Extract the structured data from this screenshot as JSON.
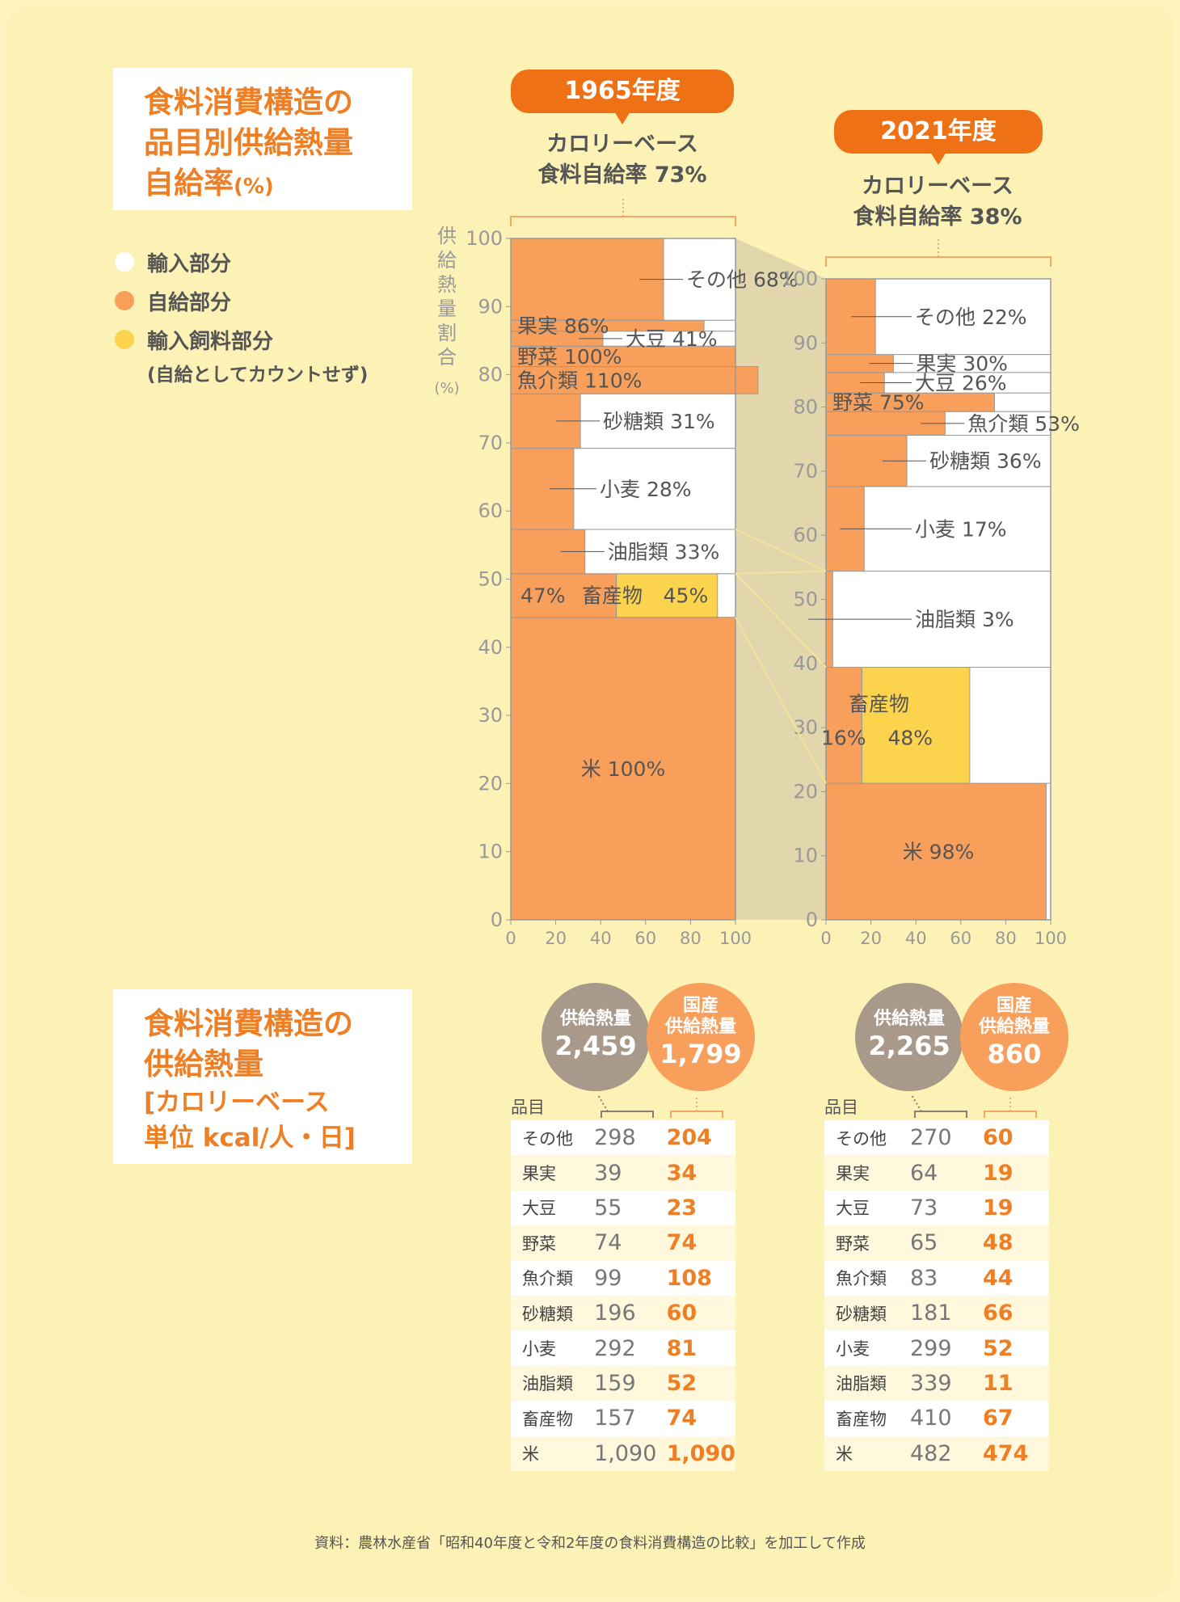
{
  "title1": "食料消費構造の\n品目別供給熱量\n自給率",
  "title1_unit": "(%)",
  "legend": [
    {
      "label": "輸入部分",
      "color": "#ffffff"
    },
    {
      "label": "自給部分",
      "color": "#f89f5b"
    },
    {
      "label": "輸入飼料部分",
      "color": "#fcd34d"
    }
  ],
  "legend_note": "(自給としてカウントせず)",
  "year1": "1965年度",
  "year2": "2021年度",
  "rate1": "カロリーベース\n食料自給率 73%",
  "rate2": "カロリーベース\n食料自給率 38%",
  "yaxis_label": "供給熱量割合",
  "yaxis_unit": "(%)",
  "title2": "食料消費構造の\n供給熱量",
  "title2_sub": "[カロリーベース\n単位 kcal/人・日]",
  "circle_supply_label": "供給熱量",
  "circle_domestic_label": "国産\n供給熱量",
  "supply_1965": "2,459",
  "domestic_1965": "1,799",
  "supply_2021": "2,265",
  "domestic_2021": "860",
  "table_header": "品目",
  "source": "資料：農林水産省「昭和40年度と令和2年度の食料消費構造の比較」を加工して作成",
  "colors": {
    "import": "#ffffff",
    "self": "#f89f5b",
    "feed": "#fcd34d",
    "accent": "#ee7116",
    "connector": "#e2d6ac"
  },
  "chart_data": [
    {
      "type": "bar",
      "title": "1965年度",
      "ylabel": "供給熱量割合 (%)",
      "xlim": [
        0,
        100
      ],
      "ylim": [
        0,
        100
      ],
      "xticks": [
        0,
        20,
        40,
        60,
        80,
        100
      ],
      "yticks": [
        0,
        10,
        20,
        30,
        40,
        50,
        60,
        70,
        80,
        90,
        100
      ],
      "items": [
        {
          "name": "米",
          "label": "米 100%",
          "y0": 0,
          "y1": 44.4,
          "self": 100,
          "feed": 0
        },
        {
          "name": "畜産物",
          "label": "畜産物",
          "y0": 44.4,
          "y1": 50.8,
          "self": 47,
          "feed": 45,
          "self_label": "47%",
          "feed_label": "45%"
        },
        {
          "name": "油脂類",
          "label": "油脂類 33%",
          "y0": 50.8,
          "y1": 57.3,
          "self": 33,
          "feed": 0
        },
        {
          "name": "小麦",
          "label": "小麦 28%",
          "y0": 57.3,
          "y1": 69.2,
          "self": 28,
          "feed": 0
        },
        {
          "name": "砂糖類",
          "label": "砂糖類 31%",
          "y0": 69.2,
          "y1": 77.2,
          "self": 31,
          "feed": 0
        },
        {
          "name": "魚介類",
          "label": "魚介類 110%",
          "y0": 77.2,
          "y1": 81.2,
          "self": 110,
          "feed": 0
        },
        {
          "name": "野菜",
          "label": "野菜 100%",
          "y0": 81.2,
          "y1": 84.2,
          "self": 100,
          "feed": 0
        },
        {
          "name": "大豆",
          "label": "大豆 41%",
          "y0": 84.2,
          "y1": 86.4,
          "self": 41,
          "feed": 0
        },
        {
          "name": "果実",
          "label": "果実 86%",
          "y0": 86.4,
          "y1": 88.0,
          "self": 86,
          "feed": 0
        },
        {
          "name": "その他",
          "label": "その他 68%",
          "y0": 88.0,
          "y1": 100,
          "self": 68,
          "feed": 0
        }
      ]
    },
    {
      "type": "bar",
      "title": "2021年度",
      "xlim": [
        0,
        100
      ],
      "ylim": [
        0,
        100
      ],
      "xticks": [
        0,
        20,
        40,
        60,
        80,
        100
      ],
      "yticks": [
        0,
        10,
        20,
        30,
        40,
        50,
        60,
        70,
        80,
        90,
        100
      ],
      "items": [
        {
          "name": "米",
          "label": "米 98%",
          "y0": 0,
          "y1": 21.3,
          "self": 98,
          "feed": 0
        },
        {
          "name": "畜産物",
          "label": "畜産物",
          "y0": 21.3,
          "y1": 39.4,
          "self": 16,
          "feed": 48,
          "self_label": "16%",
          "feed_label": "48%"
        },
        {
          "name": "油脂類",
          "label": "油脂類 3%",
          "y0": 39.4,
          "y1": 54.4,
          "self": 3,
          "feed": 0
        },
        {
          "name": "小麦",
          "label": "小麦 17%",
          "y0": 54.4,
          "y1": 67.6,
          "self": 17,
          "feed": 0
        },
        {
          "name": "砂糖類",
          "label": "砂糖類 36%",
          "y0": 67.6,
          "y1": 75.6,
          "self": 36,
          "feed": 0
        },
        {
          "name": "魚介類",
          "label": "魚介類 53%",
          "y0": 75.6,
          "y1": 79.3,
          "self": 53,
          "feed": 0
        },
        {
          "name": "野菜",
          "label": "野菜 75%",
          "y0": 79.3,
          "y1": 82.2,
          "self": 75,
          "feed": 0
        },
        {
          "name": "大豆",
          "label": "大豆 26%",
          "y0": 82.2,
          "y1": 85.4,
          "self": 26,
          "feed": 0
        },
        {
          "name": "果実",
          "label": "果実 30%",
          "y0": 85.4,
          "y1": 88.2,
          "self": 30,
          "feed": 0
        },
        {
          "name": "その他",
          "label": "その他 22%",
          "y0": 88.2,
          "y1": 100,
          "self": 22,
          "feed": 0
        }
      ]
    },
    {
      "type": "table",
      "title": "1965年度",
      "columns": [
        "品目",
        "供給熱量",
        "国産供給熱量"
      ],
      "rows": [
        [
          "その他",
          "298",
          "204"
        ],
        [
          "果実",
          "39",
          "34"
        ],
        [
          "大豆",
          "55",
          "23"
        ],
        [
          "野菜",
          "74",
          "74"
        ],
        [
          "魚介類",
          "99",
          "108"
        ],
        [
          "砂糖類",
          "196",
          "60"
        ],
        [
          "小麦",
          "292",
          "81"
        ],
        [
          "油脂類",
          "159",
          "52"
        ],
        [
          "畜産物",
          "157",
          "74"
        ],
        [
          "米",
          "1,090",
          "1,090"
        ]
      ]
    },
    {
      "type": "table",
      "title": "2021年度",
      "columns": [
        "品目",
        "供給熱量",
        "国産供給熱量"
      ],
      "rows": [
        [
          "その他",
          "270",
          "60"
        ],
        [
          "果実",
          "64",
          "19"
        ],
        [
          "大豆",
          "73",
          "19"
        ],
        [
          "野菜",
          "65",
          "48"
        ],
        [
          "魚介類",
          "83",
          "44"
        ],
        [
          "砂糖類",
          "181",
          "66"
        ],
        [
          "小麦",
          "299",
          "52"
        ],
        [
          "油脂類",
          "339",
          "11"
        ],
        [
          "畜産物",
          "410",
          "67"
        ],
        [
          "米",
          "482",
          "474"
        ]
      ]
    }
  ]
}
